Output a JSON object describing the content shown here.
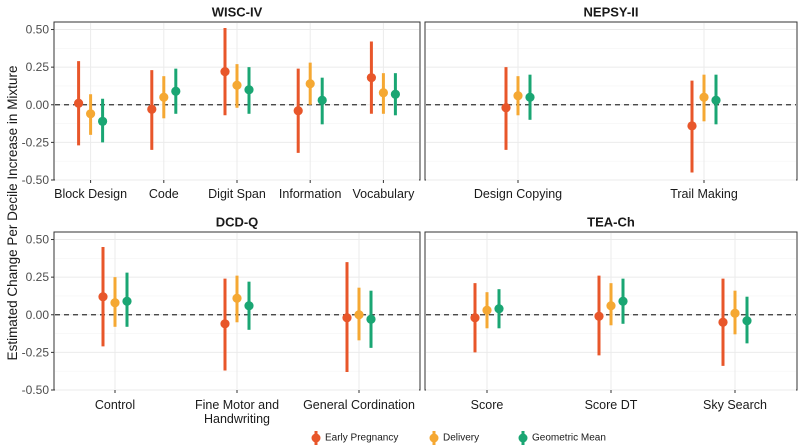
{
  "chart_data": {
    "type": "pointrange",
    "ylabel": "Estimated Change Per Decile Increase in Mixture",
    "ylim": [
      -0.5,
      0.55
    ],
    "yticks": [
      "0.50",
      "0.25",
      "0.00",
      "-0.25",
      "-0.50"
    ],
    "ytick_values": [
      0.5,
      0.25,
      0.0,
      -0.25,
      -0.5
    ],
    "legend_position": "bottom",
    "series": [
      {
        "name": "Early Pregnancy",
        "color": "#e8562a"
      },
      {
        "name": "Delivery",
        "color": "#f5a833"
      },
      {
        "name": "Geometric Mean",
        "color": "#1aa673"
      }
    ],
    "panels": [
      {
        "title": "WISC-IV",
        "categories": [
          "Block Design",
          "Code",
          "Digit Span",
          "Information",
          "Vocabulary"
        ],
        "points": [
          [
            {
              "est": 0.01,
              "lo": -0.27,
              "hi": 0.29
            },
            {
              "est": -0.06,
              "lo": -0.2,
              "hi": 0.07
            },
            {
              "est": -0.11,
              "lo": -0.25,
              "hi": 0.04
            }
          ],
          [
            {
              "est": -0.03,
              "lo": -0.3,
              "hi": 0.23
            },
            {
              "est": 0.05,
              "lo": -0.09,
              "hi": 0.19
            },
            {
              "est": 0.09,
              "lo": -0.06,
              "hi": 0.24
            }
          ],
          [
            {
              "est": 0.22,
              "lo": -0.07,
              "hi": 0.51
            },
            {
              "est": 0.13,
              "lo": -0.02,
              "hi": 0.27
            },
            {
              "est": 0.1,
              "lo": -0.06,
              "hi": 0.25
            }
          ],
          [
            {
              "est": -0.04,
              "lo": -0.32,
              "hi": 0.24
            },
            {
              "est": 0.14,
              "lo": 0.0,
              "hi": 0.28
            },
            {
              "est": 0.03,
              "lo": -0.13,
              "hi": 0.18
            }
          ],
          [
            {
              "est": 0.18,
              "lo": -0.06,
              "hi": 0.42
            },
            {
              "est": 0.08,
              "lo": -0.06,
              "hi": 0.21
            },
            {
              "est": 0.07,
              "lo": -0.07,
              "hi": 0.21
            }
          ]
        ]
      },
      {
        "title": "NEPSY-II",
        "categories": [
          "Design Copying",
          "Trail Making"
        ],
        "points": [
          [
            {
              "est": -0.02,
              "lo": -0.3,
              "hi": 0.25
            },
            {
              "est": 0.06,
              "lo": -0.07,
              "hi": 0.19
            },
            {
              "est": 0.05,
              "lo": -0.1,
              "hi": 0.2
            }
          ],
          [
            {
              "est": -0.14,
              "lo": -0.45,
              "hi": 0.16
            },
            {
              "est": 0.05,
              "lo": -0.11,
              "hi": 0.2
            },
            {
              "est": 0.03,
              "lo": -0.13,
              "hi": 0.2
            }
          ]
        ]
      },
      {
        "title": "DCD-Q",
        "categories": [
          "Control",
          "Fine Motor and\nHandwriting",
          "General Cordination"
        ],
        "points": [
          [
            {
              "est": 0.12,
              "lo": -0.21,
              "hi": 0.45
            },
            {
              "est": 0.08,
              "lo": -0.08,
              "hi": 0.25
            },
            {
              "est": 0.09,
              "lo": -0.08,
              "hi": 0.28
            }
          ],
          [
            {
              "est": -0.06,
              "lo": -0.37,
              "hi": 0.24
            },
            {
              "est": 0.11,
              "lo": -0.05,
              "hi": 0.26
            },
            {
              "est": 0.06,
              "lo": -0.1,
              "hi": 0.22
            }
          ],
          [
            {
              "est": -0.02,
              "lo": -0.38,
              "hi": 0.35
            },
            {
              "est": 0.0,
              "lo": -0.17,
              "hi": 0.18
            },
            {
              "est": -0.03,
              "lo": -0.22,
              "hi": 0.16
            }
          ]
        ]
      },
      {
        "title": "TEA-Ch",
        "categories": [
          "Score",
          "Score DT",
          "Sky Search"
        ],
        "points": [
          [
            {
              "est": -0.02,
              "lo": -0.25,
              "hi": 0.21
            },
            {
              "est": 0.03,
              "lo": -0.09,
              "hi": 0.15
            },
            {
              "est": 0.04,
              "lo": -0.09,
              "hi": 0.17
            }
          ],
          [
            {
              "est": -0.01,
              "lo": -0.27,
              "hi": 0.26
            },
            {
              "est": 0.06,
              "lo": -0.07,
              "hi": 0.21
            },
            {
              "est": 0.09,
              "lo": -0.06,
              "hi": 0.24
            }
          ],
          [
            {
              "est": -0.05,
              "lo": -0.34,
              "hi": 0.24
            },
            {
              "est": 0.01,
              "lo": -0.13,
              "hi": 0.16
            },
            {
              "est": -0.04,
              "lo": -0.19,
              "hi": 0.12
            }
          ]
        ]
      }
    ]
  }
}
